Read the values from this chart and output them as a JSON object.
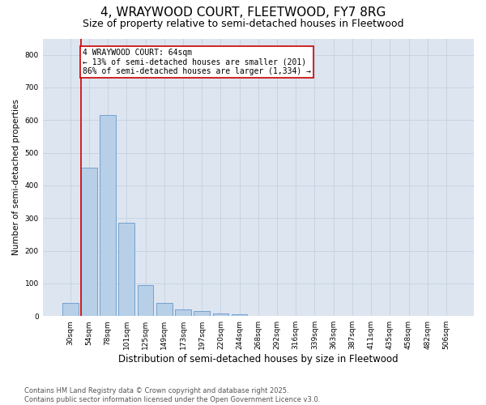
{
  "title1": "4, WRAYWOOD COURT, FLEETWOOD, FY7 8RG",
  "title2": "Size of property relative to semi-detached houses in Fleetwood",
  "xlabel": "Distribution of semi-detached houses by size in Fleetwood",
  "ylabel": "Number of semi-detached properties",
  "categories": [
    "30sqm",
    "54sqm",
    "78sqm",
    "101sqm",
    "125sqm",
    "149sqm",
    "173sqm",
    "197sqm",
    "220sqm",
    "244sqm",
    "268sqm",
    "292sqm",
    "316sqm",
    "339sqm",
    "363sqm",
    "387sqm",
    "411sqm",
    "435sqm",
    "458sqm",
    "482sqm",
    "506sqm"
  ],
  "values": [
    40,
    455,
    615,
    285,
    95,
    40,
    20,
    15,
    8,
    5,
    1,
    0,
    0,
    0,
    0,
    0,
    0,
    0,
    0,
    0,
    0
  ],
  "bar_color": "#b8cfe8",
  "bar_edgecolor": "#6699cc",
  "grid_color": "#c8d4e4",
  "bg_color": "#dde5f0",
  "red_line_index": 1,
  "annotation_text": "4 WRAYWOOD COURT: 64sqm\n← 13% of semi-detached houses are smaller (201)\n86% of semi-detached houses are larger (1,334) →",
  "annotation_box_color": "#ffffff",
  "annotation_border_color": "#cc0000",
  "ylim": [
    0,
    850
  ],
  "yticks": [
    0,
    100,
    200,
    300,
    400,
    500,
    600,
    700,
    800
  ],
  "footnote": "Contains HM Land Registry data © Crown copyright and database right 2025.\nContains public sector information licensed under the Open Government Licence v3.0.",
  "title1_fontsize": 11,
  "title2_fontsize": 9,
  "xlabel_fontsize": 8.5,
  "ylabel_fontsize": 7.5,
  "tick_fontsize": 6.5,
  "annot_fontsize": 7,
  "footnote_fontsize": 6
}
